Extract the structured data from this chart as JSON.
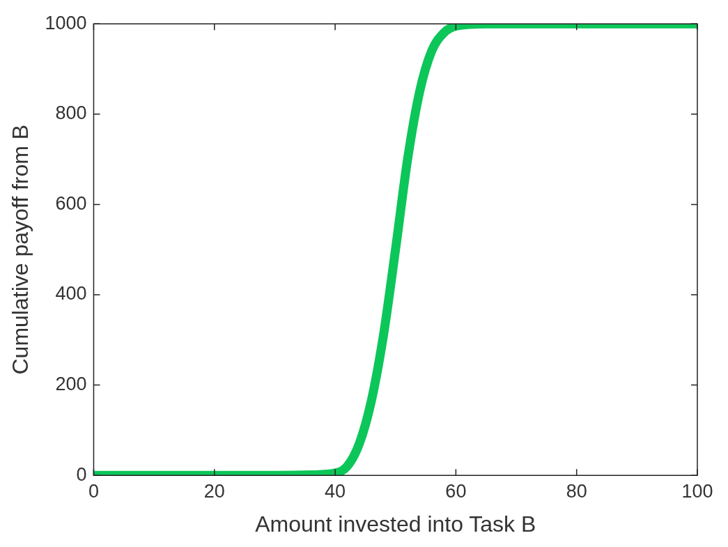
{
  "chart_data": {
    "type": "line",
    "xlabel": "Amount invested into Task B",
    "ylabel": "Cumulative payoff from B",
    "series": [
      {
        "color": "#0cc659",
        "x": [
          0,
          10,
          20,
          30,
          36,
          40,
          42,
          44,
          46,
          48,
          50,
          52,
          54,
          56,
          58,
          60,
          65,
          70,
          80,
          90,
          100
        ],
        "values": [
          0,
          0,
          0,
          0,
          1,
          5,
          20,
          70,
          165,
          310,
          500,
          700,
          850,
          940,
          980,
          995,
          1000,
          1000,
          1000,
          1000,
          1000
        ]
      }
    ],
    "xlim": [
      0,
      100
    ],
    "xticks": [
      0,
      20,
      40,
      60,
      80,
      100
    ],
    "ylim": [
      0,
      1000
    ],
    "yticks": [
      0,
      200,
      400,
      600,
      800,
      1000
    ],
    "grid": false,
    "legend": false,
    "marker": "none",
    "line_style": "solid"
  }
}
